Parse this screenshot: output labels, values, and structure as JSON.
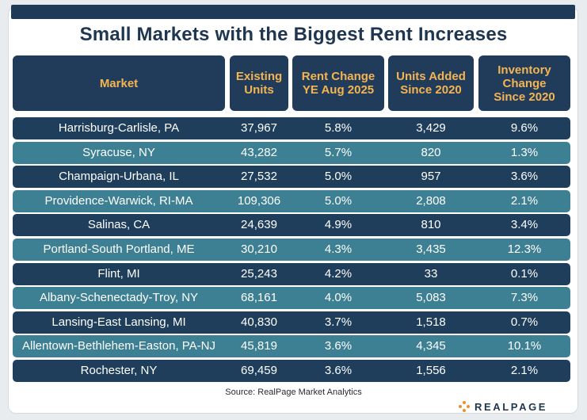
{
  "chart_data": {
    "type": "table",
    "title": "Small Markets with the Biggest Rent Increases",
    "columns": [
      "Market",
      "Existing\nUnits",
      "Rent Change\nYE Aug 2025",
      "Units Added\nSince 2020",
      "Inventory\nChange\nSince 2020"
    ],
    "rows": [
      [
        "Harrisburg-Carlisle, PA",
        "37,967",
        "5.8%",
        "3,429",
        "9.6%"
      ],
      [
        "Syracuse, NY",
        "43,282",
        "5.7%",
        "820",
        "1.3%"
      ],
      [
        "Champaign-Urbana, IL",
        "27,532",
        "5.0%",
        "957",
        "3.6%"
      ],
      [
        "Providence-Warwick, RI-MA",
        "109,306",
        "5.0%",
        "2,808",
        "2.1%"
      ],
      [
        "Salinas, CA",
        "24,639",
        "4.9%",
        "810",
        "3.4%"
      ],
      [
        "Portland-South Portland, ME",
        "30,210",
        "4.3%",
        "3,435",
        "12.3%"
      ],
      [
        "Flint, MI",
        "25,243",
        "4.2%",
        "33",
        "0.1%"
      ],
      [
        "Albany-Schenectady-Troy, NY",
        "68,161",
        "4.0%",
        "5,083",
        "7.3%"
      ],
      [
        "Lansing-East Lansing, MI",
        "40,830",
        "3.7%",
        "1,518",
        "0.7%"
      ],
      [
        "Allentown-Bethlehem-Easton, PA-NJ",
        "45,819",
        "3.6%",
        "4,345",
        "10.1%"
      ],
      [
        "Rochester, NY",
        "69,459",
        "3.6%",
        "1,556",
        "2.1%"
      ]
    ],
    "source": "Source: RealPage Market Analytics"
  },
  "brand": {
    "logo_text": "REALPAGE",
    "logo_icon": "realpage-dots-logo",
    "colors": {
      "navy": "#1f3e5b",
      "teal": "#3d7f93",
      "header_text": "#f5b452",
      "accent": "#f28c28"
    }
  }
}
